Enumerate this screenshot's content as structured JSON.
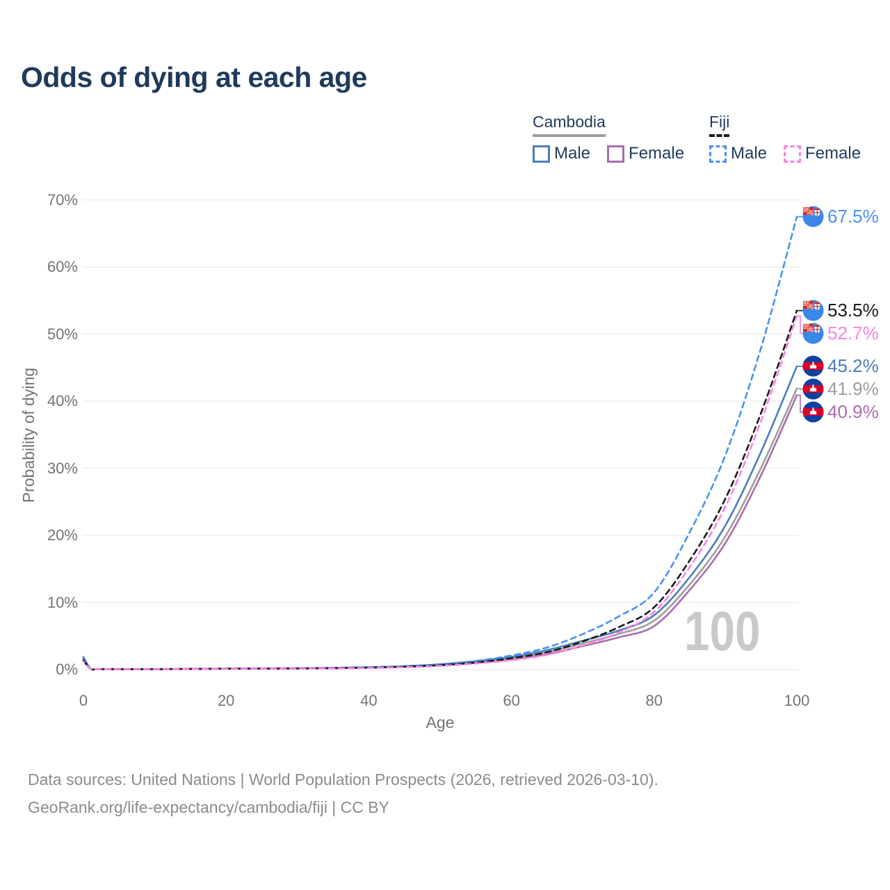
{
  "title": "Odds of dying at each age",
  "watermark": "100",
  "legend": {
    "groups": [
      {
        "name": "Cambodia",
        "line_style": "solid",
        "underline_color": "#9e9e9e",
        "items": [
          {
            "label": "Male",
            "color": "#4a7eba"
          },
          {
            "label": "Female",
            "color": "#ab6bae"
          }
        ]
      },
      {
        "name": "Fiji",
        "line_style": "dashed",
        "underline_color": "#1a1a1a",
        "items": [
          {
            "label": "Male",
            "color": "#4a90f4"
          },
          {
            "label": "Female",
            "color": "#ff80e0"
          }
        ]
      }
    ]
  },
  "footer": {
    "line1": "Data sources: United Nations | World Population Prospects (2026, retrieved 2026-03-10).",
    "line2": "GeoRank.org/life-expectancy/cambodia/fiji | CC BY"
  },
  "chart_data": {
    "type": "line",
    "title": "Odds of dying at each age",
    "xlabel": "Age",
    "ylabel": "Probability of dying",
    "xlim": [
      0,
      100
    ],
    "ylim": [
      0,
      70
    ],
    "grid": "horizontal",
    "x_ticks": [
      {
        "label": "0",
        "value": 0
      },
      {
        "label": "20",
        "value": 20
      },
      {
        "label": "40",
        "value": 40
      },
      {
        "label": "60",
        "value": 60
      },
      {
        "label": "80",
        "value": 80
      },
      {
        "label": "100",
        "value": 100
      }
    ],
    "y_ticks": [
      {
        "label": "0%",
        "value": 0
      },
      {
        "label": "10%",
        "value": 10
      },
      {
        "label": "20%",
        "value": 20
      },
      {
        "label": "30%",
        "value": 30
      },
      {
        "label": "40%",
        "value": 40
      },
      {
        "label": "50%",
        "value": 50
      },
      {
        "label": "60%",
        "value": 60
      },
      {
        "label": "70%",
        "value": 70
      }
    ],
    "ages": [
      0,
      1,
      2,
      5,
      10,
      15,
      20,
      25,
      30,
      35,
      40,
      45,
      50,
      55,
      60,
      65,
      70,
      75,
      80,
      85,
      90,
      95,
      100
    ],
    "series": [
      {
        "name": "Cambodia Female",
        "country": "Cambodia",
        "sex": "Female",
        "color": "#ab6bae",
        "line_style": "solid",
        "flag": "cambodia",
        "end_label": "40.9%",
        "values": [
          1.6,
          0.1,
          0.07,
          0.06,
          0.06,
          0.08,
          0.12,
          0.14,
          0.16,
          0.21,
          0.29,
          0.42,
          0.64,
          1.0,
          1.5,
          2.3,
          3.5,
          4.8,
          6.5,
          11.9,
          18.9,
          29.0,
          40.9
        ]
      },
      {
        "name": "Cambodia Both sexes",
        "country": "Cambodia",
        "sex": "Both sexes",
        "color": "#9e9e9e",
        "line_style": "solid",
        "flag": "cambodia",
        "end_label": "41.9%",
        "values": [
          1.8,
          0.11,
          0.07,
          0.07,
          0.07,
          0.09,
          0.13,
          0.16,
          0.18,
          0.24,
          0.33,
          0.47,
          0.72,
          1.1,
          1.7,
          2.6,
          3.9,
          5.3,
          7.3,
          12.7,
          19.9,
          30.1,
          41.9
        ]
      },
      {
        "name": "Cambodia Male",
        "country": "Cambodia",
        "sex": "Male",
        "color": "#4a7eba",
        "line_style": "solid",
        "flag": "cambodia",
        "end_label": "45.2%",
        "values": [
          1.9,
          0.12,
          0.08,
          0.07,
          0.07,
          0.1,
          0.14,
          0.17,
          0.2,
          0.26,
          0.36,
          0.52,
          0.8,
          1.25,
          1.9,
          2.9,
          4.3,
          5.8,
          8.1,
          13.8,
          21.5,
          32.5,
          45.2
        ]
      },
      {
        "name": "Fiji Male",
        "country": "Fiji",
        "sex": "Male",
        "color": "#4a90f4",
        "line_style": "dashed",
        "flag": "fiji",
        "end_label": "67.5%",
        "values": [
          1.7,
          0.1,
          0.08,
          0.07,
          0.07,
          0.1,
          0.15,
          0.18,
          0.2,
          0.25,
          0.35,
          0.5,
          0.8,
          1.3,
          2.1,
          3.3,
          5.3,
          7.9,
          11.5,
          20.5,
          32.0,
          48.0,
          67.5
        ]
      },
      {
        "name": "Fiji Both sexes",
        "country": "Fiji",
        "sex": "Both sexes",
        "color": "#1a1a1a",
        "line_style": "dashed",
        "flag": "fiji",
        "end_label": "53.5%",
        "values": [
          1.4,
          0.09,
          0.07,
          0.06,
          0.06,
          0.09,
          0.13,
          0.15,
          0.17,
          0.21,
          0.29,
          0.41,
          0.65,
          1.05,
          1.7,
          2.6,
          4.2,
          6.3,
          9.3,
          16.3,
          25.5,
          38.3,
          53.5
        ]
      },
      {
        "name": "Fiji Female",
        "country": "Fiji",
        "sex": "Female",
        "color": "#ff80e0",
        "line_style": "dashed",
        "flag": "fiji",
        "end_label": "52.7%",
        "values": [
          1.2,
          0.08,
          0.06,
          0.05,
          0.05,
          0.08,
          0.11,
          0.13,
          0.15,
          0.18,
          0.25,
          0.35,
          0.55,
          0.9,
          1.4,
          2.2,
          3.6,
          5.5,
          8.6,
          15.3,
          24.3,
          37.1,
          52.7
        ]
      }
    ]
  }
}
